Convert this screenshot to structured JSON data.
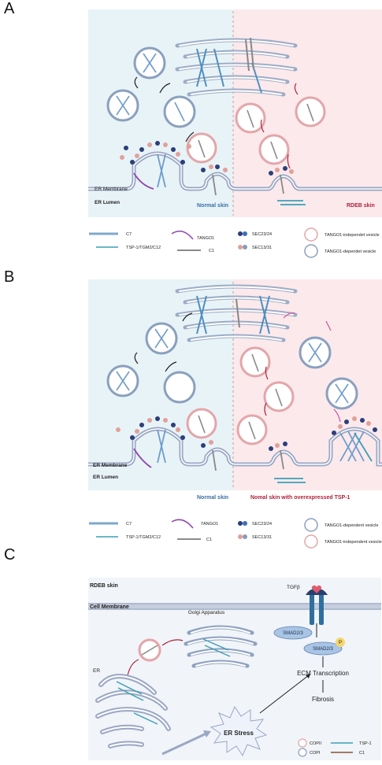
{
  "panels": {
    "a": {
      "letter": "A",
      "er_membrane": "ER Membrane",
      "er_lumen": "ER Lumen",
      "normal_label": "Normal skin",
      "rdeb_label": "RDEB skin",
      "legend": {
        "c7": "C7",
        "tsp": "TSP-1/TGM2/C12",
        "tango1": "TANGO1",
        "c1": "C1",
        "sec2324": "SEC23/24",
        "sec1331": "SEC13/31",
        "independent": "TANGO1-independet vesicle",
        "dependent": "TANGO1-dependet vesicle"
      }
    },
    "b": {
      "letter": "B",
      "er_membrane": "ER Membrane",
      "er_lumen": "ER Lumen",
      "normal_label": "Normal skin",
      "tsp_label": "Nomal skin with overexpressed TSP-1",
      "legend": {
        "c7": "C7",
        "tsp": "TSP-1/TGM2/C12",
        "tango1": "TANGO1",
        "c1": "C1",
        "sec2324": "SEC23/24",
        "sec1331": "SEC13/31",
        "dependent": "TANGO1-dependent vesicle",
        "independent": "TANGO1-independent vesicle"
      }
    },
    "c": {
      "letter": "C",
      "rdeb": "RDEB skin",
      "cell_membrane": "Cell Membrane",
      "golgi": "Golgi Apparatus",
      "er": "ER",
      "tgfb": "TGFβ",
      "smad_upper": "SMAD2/3",
      "smad_lower": "SMAD2/3",
      "phospho": "P",
      "ecm": "ECM Transcription",
      "fibrosis": "Fibrosis",
      "er_stress": "ER Stress",
      "legend": {
        "copii": "COPII",
        "copi": "COPI",
        "tsp1": "TSP-1",
        "c1": "C1"
      }
    }
  },
  "colors": {
    "normal_bg": "#e8f3f7",
    "rdeb_bg": "#fbe9ec",
    "membrane": "#9aa7c4",
    "c7": "#7fa8cc",
    "tsp": "#3a9fb5",
    "tango1": "#8e44ad",
    "c1": "#8a8a8a",
    "sec23": "#2c3e7a",
    "sec24": "#3f6fb5",
    "sec13": "#e0a19a",
    "sec31": "#8a9bb8",
    "vesicle_dep": "#8aa0be",
    "vesicle_indep": "#e3a6a9",
    "arrow_red": "#b0203a",
    "smad": "#a9c4e4"
  }
}
